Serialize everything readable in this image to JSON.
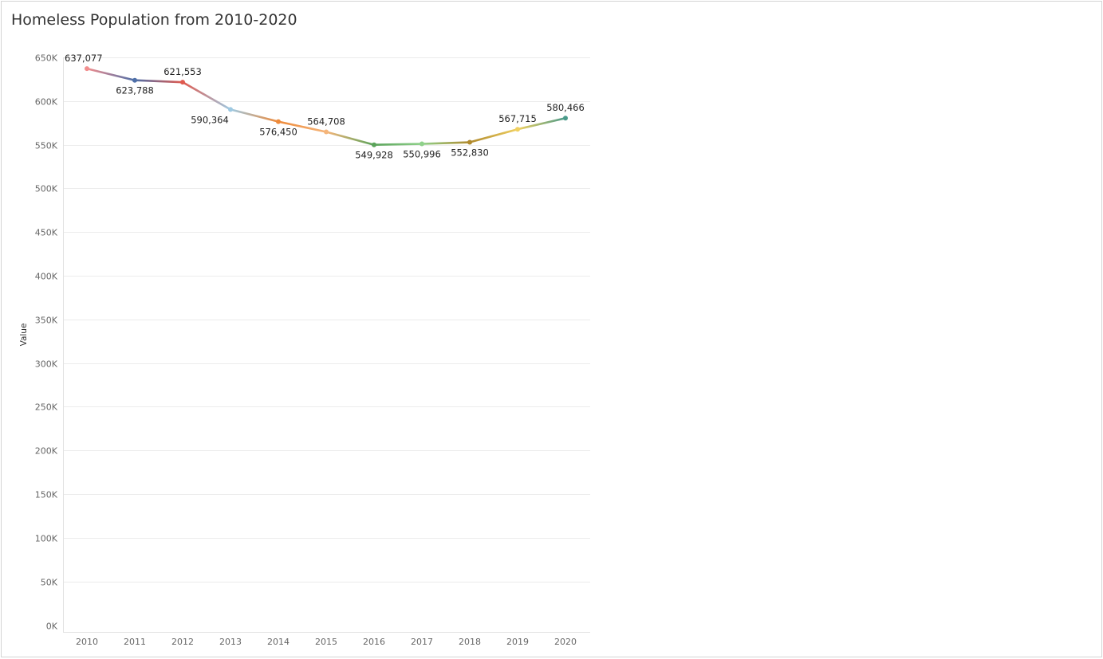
{
  "chart_data": {
    "type": "line",
    "title": "Homeless Population from 2010-2020",
    "xlabel": "",
    "ylabel": "Value",
    "categories": [
      "2010",
      "2011",
      "2012",
      "2013",
      "2014",
      "2015",
      "2016",
      "2017",
      "2018",
      "2019",
      "2020"
    ],
    "values": [
      637077,
      623788,
      621553,
      590364,
      576450,
      564708,
      549928,
      550996,
      552830,
      567715,
      580466
    ],
    "data_labels": [
      "637,077",
      "623,788",
      "621,553",
      "590,364",
      "576,450",
      "564,708",
      "549,928",
      "550,996",
      "552,830",
      "567,715",
      "580,466"
    ],
    "point_colors": [
      "#f28e8e",
      "#4e6fa8",
      "#e05a4f",
      "#9ec9e2",
      "#ee8a3a",
      "#f5b57a",
      "#5aa35a",
      "#8fd18b",
      "#b08a2e",
      "#f0d060",
      "#4a9a8a"
    ],
    "ylim": [
      0,
      650000
    ],
    "yticks": [
      {
        "value": 650000,
        "label": "650K"
      },
      {
        "value": 600000,
        "label": "600K"
      },
      {
        "value": 550000,
        "label": "550K"
      },
      {
        "value": 500000,
        "label": "500K"
      },
      {
        "value": 450000,
        "label": "450K"
      },
      {
        "value": 400000,
        "label": "400K"
      },
      {
        "value": 350000,
        "label": "350K"
      },
      {
        "value": 300000,
        "label": "300K"
      },
      {
        "value": 250000,
        "label": "250K"
      },
      {
        "value": 200000,
        "label": "200K"
      },
      {
        "value": 150000,
        "label": "150K"
      },
      {
        "value": 100000,
        "label": "100K"
      },
      {
        "value": 50000,
        "label": "50K"
      },
      {
        "value": 0,
        "label": "0K"
      }
    ],
    "grid": true,
    "legend": "none"
  }
}
